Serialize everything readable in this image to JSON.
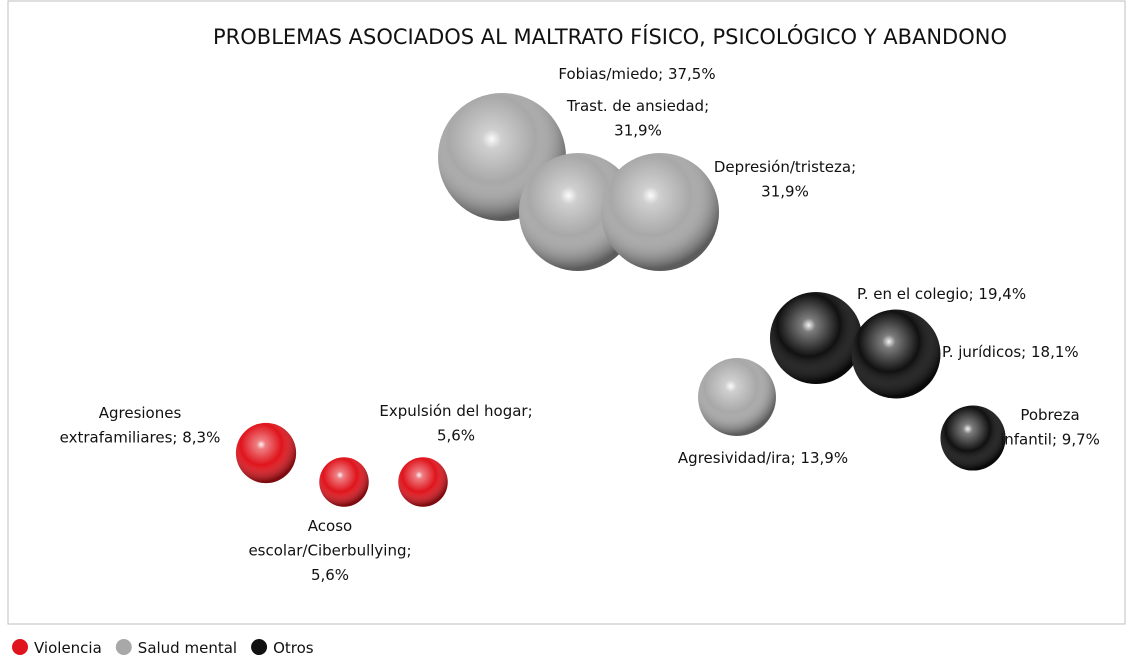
{
  "chart_data": {
    "type": "bubble",
    "title": "PROBLEMAS ASOCIADOS AL MALTRATO FÍSICO, PSICOLÓGICO Y ABANDONO",
    "legend": "bottom-left",
    "series": [
      {
        "name": "Violencia",
        "color": "#e0141c",
        "values": [
          8.3,
          5.6,
          5.6
        ],
        "value_labels": [
          "Agresiones\nextrafamiliares; 8,3%",
          "Acoso\nescolar/Ciberbullying;\n5,6%",
          "Expulsión del hogar;\n5,6%"
        ]
      },
      {
        "name": "Salud mental",
        "color": "#a8a8a8",
        "values": [
          37.5,
          31.9,
          31.9,
          13.9
        ],
        "value_labels": [
          "Fobias/miedo; 37,5%",
          "Trast. de ansiedad;\n31,9%",
          "Depresión/tristeza;\n31,9%",
          "Agresividad/ira; 13,9%"
        ]
      },
      {
        "name": "Otros",
        "color": "#111111",
        "values": [
          19.4,
          18.1,
          9.7
        ],
        "value_labels": [
          "P. en el colegio; 19,4%",
          "P. jurídicos; 18,1%",
          "Pobreza\ninfantil; 9,7%"
        ]
      }
    ]
  }
}
